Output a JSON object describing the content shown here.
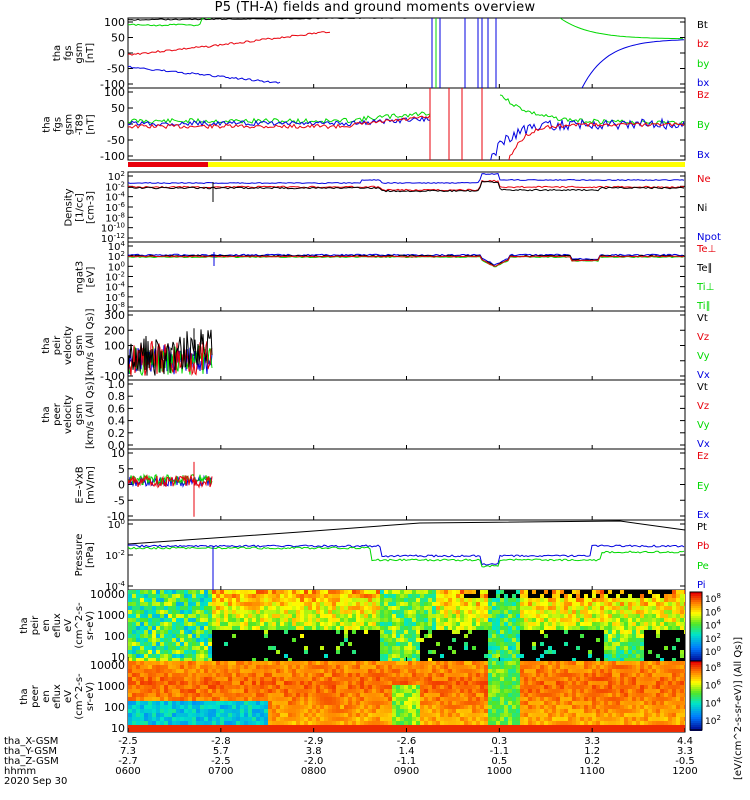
{
  "figure": {
    "title": "P5 (TH-A) fields and ground moments overview",
    "date": "2020 Sep 30",
    "time_ticks": [
      "0600",
      "0700",
      "0800",
      "0900",
      "1000",
      "1100",
      "1200"
    ],
    "orbit_rows": [
      {
        "label": "tha_X-GSM",
        "values": [
          "-2.5",
          "-2.8",
          "-2.9",
          "-2.6",
          "0.3",
          "3.3",
          "4.4"
        ]
      },
      {
        "label": "tha_Y-GSM",
        "values": [
          "7.3",
          "5.7",
          "3.8",
          "1.4",
          "-1.1",
          "1.2",
          "3.3"
        ]
      },
      {
        "label": "tha_Z-GSM",
        "values": [
          "-2.7",
          "-2.5",
          "-2.0",
          "-1.1",
          "0.5",
          "0.2",
          "-0.5"
        ]
      },
      {
        "label": "hhmm",
        "values": []
      }
    ],
    "colorbar_title": "[eV/(cm^2-s-sr-eV)] (All Qs)]",
    "colorbar_ticks_upper": [
      "10^8",
      "10^6",
      "10^4",
      "10^2",
      "10^0"
    ],
    "colorbar_ticks_lower": [
      "10^8",
      "10^6",
      "10^4",
      "10^2"
    ],
    "colors": {
      "black": "#000000",
      "red": "#e8000b",
      "green": "#00d800",
      "blue": "#0000e0",
      "yellow": "#ffff00"
    }
  },
  "chart_data": [
    {
      "type": "line",
      "panel": "fgs_gsm",
      "ylabel": "tha\nfgs\ngsm\n[nT]",
      "yticks": [
        "100",
        "50",
        "0",
        "-50",
        "-100"
      ],
      "ylim": [
        -100,
        100
      ],
      "series": [
        {
          "name": "Bt",
          "color": "#000000"
        },
        {
          "name": "bz",
          "color": "#e8000b"
        },
        {
          "name": "by",
          "color": "#00d800"
        },
        {
          "name": "bx",
          "color": "#0000e0"
        }
      ]
    },
    {
      "type": "line",
      "panel": "fgs_gsm_dipole",
      "ylabel": "tha\nfgs\ngsm\n-T89\n[nT]",
      "yticks": [
        "100",
        "50",
        "0",
        "-50",
        "-100"
      ],
      "ylim": [
        -120,
        120
      ],
      "series": [
        {
          "name": "Bz",
          "color": "#e8000b"
        },
        {
          "name": "By",
          "color": "#00d800"
        },
        {
          "name": "Bx",
          "color": "#0000e0"
        }
      ]
    },
    {
      "type": "line",
      "panel": "density",
      "ylabel": "Density\n[1/cc]\n[cm-3]",
      "yticks": [
        "10^2",
        "10^-2",
        "10^-4",
        "10^-6",
        "10^-8",
        "10^-10",
        "10^-12"
      ],
      "series": [
        {
          "name": "Ne",
          "color": "#e8000b"
        },
        {
          "name": "Ni",
          "color": "#000000"
        },
        {
          "name": "Npot",
          "color": "#0000e0"
        }
      ]
    },
    {
      "type": "line",
      "panel": "temperature",
      "ylabel": "mgat3\n[eV]",
      "yticks": [
        "10^4",
        "10^2",
        "10^0",
        "10^-2",
        "10^-4",
        "10^-6",
        "10^-8"
      ],
      "series": [
        {
          "name": "Te⊥",
          "color": "#e8000b"
        },
        {
          "name": "Te∥",
          "color": "#000000"
        },
        {
          "name": "Ti⊥",
          "color": "#00d800"
        },
        {
          "name": "Ti∥",
          "color": "#00d800"
        }
      ]
    },
    {
      "type": "line",
      "panel": "peir_velocity",
      "ylabel": "tha\npeir\nvelocity\ngsm\n[km/s (All Qs)]",
      "yticks": [
        "300",
        "200",
        "100",
        "0",
        "-100"
      ],
      "ylim": [
        -100,
        300
      ],
      "series": [
        {
          "name": "Vt",
          "color": "#000000"
        },
        {
          "name": "Vz",
          "color": "#e8000b"
        },
        {
          "name": "Vy",
          "color": "#00d800"
        },
        {
          "name": "Vx",
          "color": "#0000e0"
        }
      ]
    },
    {
      "type": "line",
      "panel": "peer_velocity",
      "ylabel": "tha\npeer\nvelocity\ngsm\n[km/s (All Qs)]",
      "yticks": [
        "1.0",
        "0.8",
        "0.6",
        "0.4",
        "0.2",
        "0.0"
      ],
      "ylim": [
        0,
        1
      ],
      "series": [
        {
          "name": "Vt",
          "color": "#000000"
        },
        {
          "name": "Vz",
          "color": "#e8000b"
        },
        {
          "name": "Vy",
          "color": "#00d800"
        },
        {
          "name": "Vx",
          "color": "#0000e0"
        }
      ]
    },
    {
      "type": "line",
      "panel": "efield",
      "ylabel": "E=-VxB\n[mV/m]",
      "yticks": [
        "10",
        "5",
        "0",
        "-5",
        "-10"
      ],
      "ylim": [
        -12,
        10
      ],
      "series": [
        {
          "name": "Ez",
          "color": "#e8000b"
        },
        {
          "name": "Ey",
          "color": "#00d800"
        },
        {
          "name": "Ex",
          "color": "#0000e0"
        }
      ]
    },
    {
      "type": "line",
      "panel": "pressure",
      "ylabel": "Pressure\n[nPa]",
      "yticks": [
        "10^0",
        "10^-2",
        "10^-4"
      ],
      "series": [
        {
          "name": "Pt",
          "color": "#000000"
        },
        {
          "name": "Pb",
          "color": "#e8000b"
        },
        {
          "name": "Pe",
          "color": "#00d800"
        },
        {
          "name": "Pi",
          "color": "#0000e0"
        }
      ]
    },
    {
      "type": "heatmap",
      "panel": "peir_spectrogram",
      "ylabel": "tha\npeir\nen\neflux\neV\n(cm^2-s-\nsr-eV)",
      "yticks": [
        "10000",
        "1000",
        "100",
        "10"
      ]
    },
    {
      "type": "heatmap",
      "panel": "peer_spectrogram",
      "ylabel": "tha\npeer\nen\neflux\neV\n(cm^2-s-\nsr-eV)",
      "yticks": [
        "10000",
        "1000",
        "100",
        "10"
      ]
    }
  ]
}
